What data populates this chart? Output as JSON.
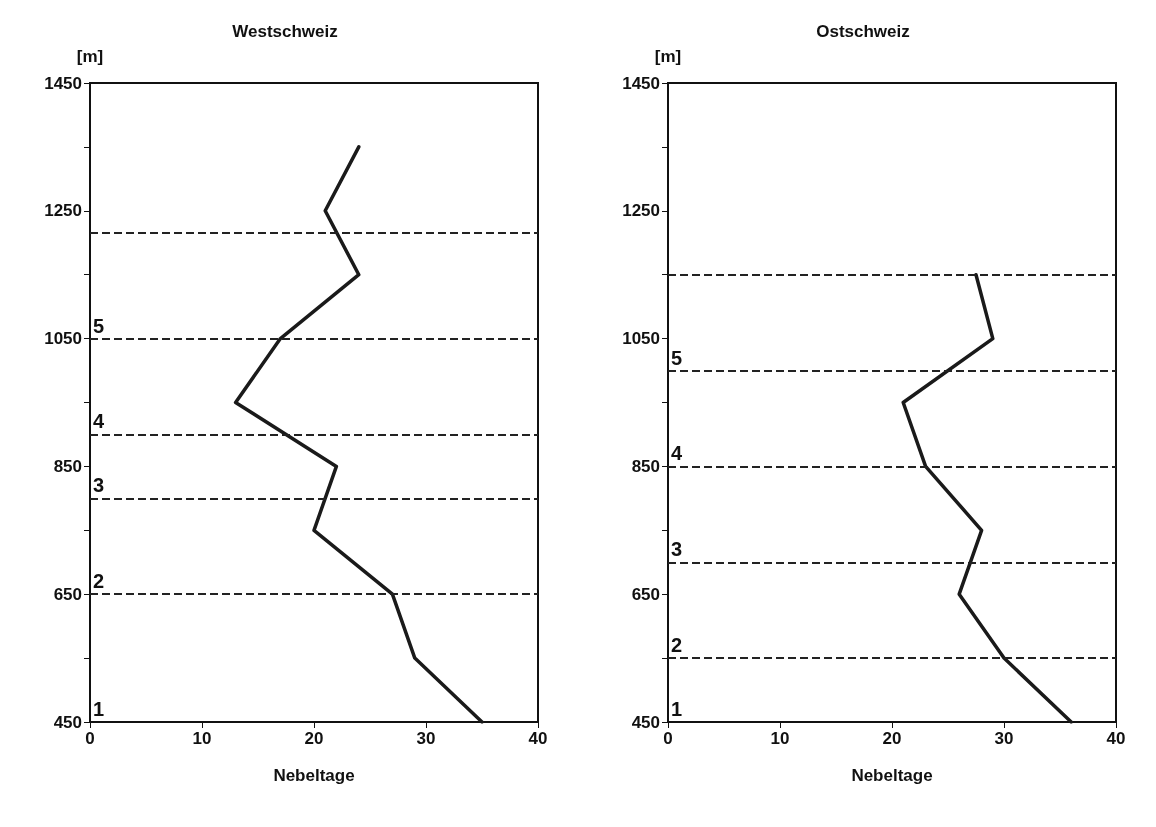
{
  "chart_data": [
    {
      "type": "line",
      "title": "Westschweiz",
      "xlabel": "Nebeltage",
      "ylabel": "[m]",
      "xlim": [
        0,
        40
      ],
      "xticks": [
        0,
        10,
        20,
        30,
        40
      ],
      "ylim": [
        450,
        1450
      ],
      "yticks": [
        450,
        {
          "value": 550,
          "label": null
        },
        650,
        {
          "value": 750,
          "label": null
        },
        850,
        {
          "value": 950,
          "label": null
        },
        1050,
        {
          "value": 1150,
          "label": null
        },
        1250,
        {
          "value": 1350,
          "label": null
        },
        1450
      ],
      "grid": false,
      "marker": "none",
      "line_style": "solid",
      "series": [
        {
          "color": "#1a1a1a",
          "x": [
            24,
            21,
            24,
            17,
            13,
            22,
            20,
            27,
            29,
            35
          ],
          "values": [
            1350,
            1250,
            1150,
            1050,
            950,
            850,
            750,
            650,
            550,
            450
          ]
        }
      ],
      "ref_lines": [
        {
          "axis": "y",
          "value": 1215,
          "line_style": "dashed"
        },
        {
          "axis": "y",
          "value": 1050,
          "line_style": "dashed"
        },
        {
          "axis": "y",
          "value": 900,
          "line_style": "dashed"
        },
        {
          "axis": "y",
          "value": 800,
          "line_style": "dashed"
        },
        {
          "axis": "y",
          "value": 650,
          "line_style": "dashed"
        }
      ],
      "annotations": [
        "1",
        "2",
        "3",
        "4",
        "5"
      ]
    },
    {
      "type": "line",
      "title": "Ostschweiz",
      "xlabel": "Nebeltage",
      "ylabel": "[m]",
      "xlim": [
        0,
        40
      ],
      "xticks": [
        0,
        10,
        20,
        30,
        40
      ],
      "ylim": [
        450,
        1450
      ],
      "yticks": [
        450,
        {
          "value": 550,
          "label": null
        },
        650,
        {
          "value": 750,
          "label": null
        },
        850,
        {
          "value": 950,
          "label": null
        },
        1050,
        {
          "value": 1150,
          "label": null
        },
        1250,
        {
          "value": 1350,
          "label": null
        },
        1450
      ],
      "grid": false,
      "marker": "none",
      "line_style": "solid",
      "series": [
        {
          "color": "#1a1a1a",
          "x": [
            27.5,
            29,
            21,
            23,
            28,
            26,
            30,
            36
          ],
          "values": [
            1150,
            1050,
            950,
            850,
            750,
            650,
            550,
            450
          ]
        }
      ],
      "ref_lines": [
        {
          "axis": "y",
          "value": 1150,
          "line_style": "dashed"
        },
        {
          "axis": "y",
          "value": 1000,
          "line_style": "dashed"
        },
        {
          "axis": "y",
          "value": 850,
          "line_style": "dashed"
        },
        {
          "axis": "y",
          "value": 700,
          "line_style": "dashed"
        },
        {
          "axis": "y",
          "value": 550,
          "line_style": "dashed"
        }
      ],
      "annotations": [
        "1",
        "2",
        "3",
        "4",
        "5"
      ]
    }
  ]
}
